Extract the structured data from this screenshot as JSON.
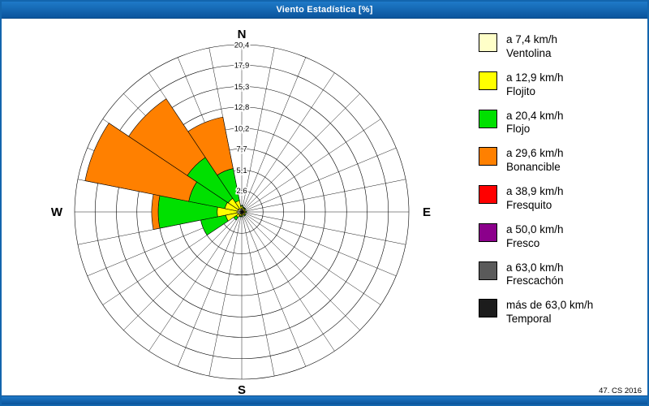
{
  "window": {
    "title": "Viento Estadística [%]",
    "footer_note": "47. CS 2016",
    "titlebar_color": "#0b549c",
    "border_color": "#1365ad"
  },
  "chart_data": {
    "type": "wind-rose",
    "title": "Viento Estadística [%]",
    "units": "%",
    "compass": {
      "n": "N",
      "e": "E",
      "s": "S",
      "w": "W"
    },
    "ring_values": [
      2.6,
      5.1,
      7.7,
      10.2,
      12.8,
      15.3,
      17.9,
      20.4
    ],
    "ring_labels": [
      "2,6",
      "5,1",
      "7,7",
      "10,2",
      "12,8",
      "15,3",
      "17,9",
      "20,4"
    ],
    "max_value": 20.4,
    "spoke_count": 32,
    "grid_color": "#000000",
    "legend_position": "right",
    "speed_classes": [
      {
        "label_speed": "a 7,4 km/h",
        "label_name": "Ventolina",
        "color": "#ffffc8"
      },
      {
        "label_speed": "a 12,9 km/h",
        "label_name": "Flojito",
        "color": "#ffff00"
      },
      {
        "label_speed": "a 20,4 km/h",
        "label_name": "Flojo",
        "color": "#00e000"
      },
      {
        "label_speed": "a 29,6 km/h",
        "label_name": "Bonancible",
        "color": "#ff8000"
      },
      {
        "label_speed": "a 38,9 km/h",
        "label_name": "Fresquito",
        "color": "#ff0000"
      },
      {
        "label_speed": "a 50,0 km/h",
        "label_name": "Fresco",
        "color": "#8b008b"
      },
      {
        "label_speed": "a 63,0 km/h",
        "label_name": "Frescachón",
        "color": "#5a5a5a"
      },
      {
        "label_speed": "más de 63,0 km/h",
        "label_name": "Temporal",
        "color": "#1c1c1c"
      }
    ],
    "series": [
      {
        "direction": "N",
        "values": [
          0.4,
          0.3,
          0.1,
          0,
          0,
          0,
          0,
          0
        ]
      },
      {
        "direction": "NNE",
        "values": [
          0.3,
          0.2,
          0.1,
          0,
          0,
          0,
          0,
          0
        ]
      },
      {
        "direction": "NE",
        "values": [
          0.3,
          0.2,
          0.1,
          0,
          0,
          0,
          0,
          0
        ]
      },
      {
        "direction": "ENE",
        "values": [
          0.2,
          0.2,
          0,
          0,
          0,
          0,
          0,
          0
        ]
      },
      {
        "direction": "E",
        "values": [
          0.3,
          0.2,
          0.1,
          0,
          0,
          0,
          0,
          0
        ]
      },
      {
        "direction": "ESE",
        "values": [
          0.2,
          0.2,
          0,
          0,
          0,
          0,
          0,
          0
        ]
      },
      {
        "direction": "SE",
        "values": [
          0.3,
          0.2,
          0.1,
          0,
          0,
          0,
          0,
          0
        ]
      },
      {
        "direction": "SSE",
        "values": [
          0.2,
          0.2,
          0,
          0,
          0,
          0,
          0,
          0
        ]
      },
      {
        "direction": "S",
        "values": [
          0.3,
          0.2,
          0.1,
          0,
          0,
          0,
          0,
          0
        ]
      },
      {
        "direction": "SSW",
        "values": [
          0.3,
          0.2,
          0.1,
          0,
          0,
          0,
          0,
          0
        ]
      },
      {
        "direction": "SW",
        "values": [
          0.4,
          0.4,
          0.4,
          0,
          0,
          0,
          0,
          0
        ]
      },
      {
        "direction": "WSW",
        "values": [
          0.5,
          1.5,
          3.1,
          0,
          0,
          0,
          0,
          0
        ]
      },
      {
        "direction": "W",
        "values": [
          0.6,
          2.4,
          7.2,
          0.8,
          0,
          0,
          0,
          0
        ]
      },
      {
        "direction": "WNW",
        "values": [
          0.5,
          1.6,
          4.5,
          12.9,
          0,
          0,
          0,
          0
        ]
      },
      {
        "direction": "NW",
        "values": [
          0.5,
          1.5,
          6.0,
          8.6,
          0,
          0,
          0,
          0
        ]
      },
      {
        "direction": "NNW",
        "values": [
          0.4,
          1.0,
          4.0,
          6.4,
          0,
          0,
          0,
          0
        ]
      }
    ]
  }
}
